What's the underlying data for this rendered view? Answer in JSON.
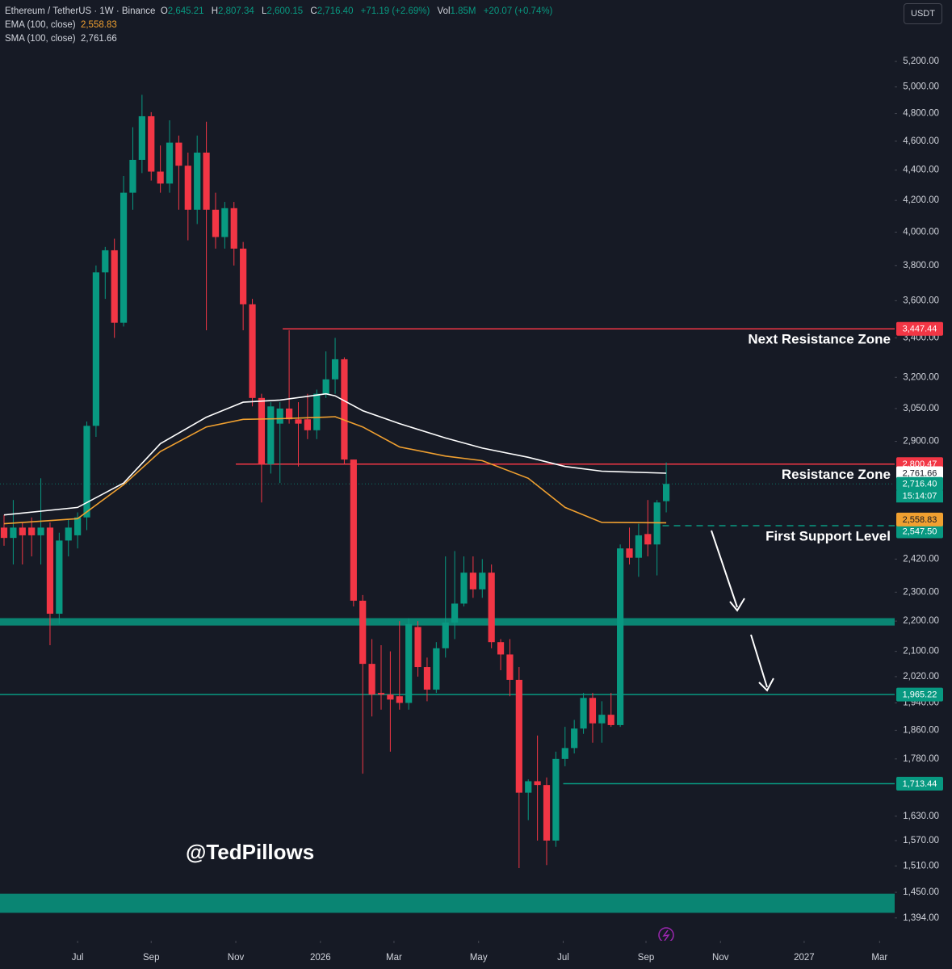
{
  "header": {
    "symbol": "Ethereum / TetherUS · 1W · Binance",
    "open_key": "O",
    "open": "2,645.21",
    "high_key": "H",
    "high": "2,807.34",
    "low_key": "L",
    "low": "2,600.15",
    "close_key": "C",
    "close": "2,716.40",
    "change": "+71.19 (+2.69%)",
    "volume_key": "Vol",
    "volume": "1.85M",
    "volume_change": "+20.07 (+0.74%)"
  },
  "currency": "USDT",
  "watermark": "@TedPillows",
  "chart_data": {
    "type": "candlestick",
    "log_scale": true,
    "up_color": "#089981",
    "down_color": "#f23645",
    "ylim": [
      1346,
      5715
    ],
    "yticks": [
      {
        "value": 5200,
        "label": "5,200.00"
      },
      {
        "value": 5000,
        "label": "5,000.00"
      },
      {
        "value": 4800,
        "label": "4,800.00"
      },
      {
        "value": 4600,
        "label": "4,600.00"
      },
      {
        "value": 4400,
        "label": "4,400.00"
      },
      {
        "value": 4200,
        "label": "4,200.00"
      },
      {
        "value": 4000,
        "label": "4,000.00"
      },
      {
        "value": 3800,
        "label": "3,800.00"
      },
      {
        "value": 3600,
        "label": "3,600.00"
      },
      {
        "value": 3400,
        "label": "3,400.00"
      },
      {
        "value": 3200,
        "label": "3,200.00"
      },
      {
        "value": 3050,
        "label": "3,050.00"
      },
      {
        "value": 2900,
        "label": "2,900.00"
      },
      {
        "value": 2420,
        "label": "2,420.00"
      },
      {
        "value": 2300,
        "label": "2,300.00"
      },
      {
        "value": 2200,
        "label": "2,200.00"
      },
      {
        "value": 2100,
        "label": "2,100.00"
      },
      {
        "value": 2020,
        "label": "2,020.00"
      },
      {
        "value": 1940,
        "label": "1,940.00"
      },
      {
        "value": 1860,
        "label": "1,860.00"
      },
      {
        "value": 1780,
        "label": "1,780.00"
      },
      {
        "value": 1630,
        "label": "1,630.00"
      },
      {
        "value": 1570,
        "label": "1,570.00"
      },
      {
        "value": 1510,
        "label": "1,510.00"
      },
      {
        "value": 1450,
        "label": "1,450.00"
      },
      {
        "value": 1394,
        "label": "1,394.00"
      }
    ],
    "xlim": [
      -0.44,
      96.84
    ],
    "xticks": [
      {
        "value": 8.0,
        "label": "Jul"
      },
      {
        "value": 16.0,
        "label": "Sep"
      },
      {
        "value": 25.2,
        "label": "Nov"
      },
      {
        "value": 34.4,
        "label": "2026"
      },
      {
        "value": 42.4,
        "label": "Mar"
      },
      {
        "value": 51.6,
        "label": "May"
      },
      {
        "value": 60.8,
        "label": "Jul"
      },
      {
        "value": 69.8,
        "label": "Sep"
      },
      {
        "value": 77.9,
        "label": "Nov"
      },
      {
        "value": 87.0,
        "label": "2027"
      },
      {
        "value": 95.2,
        "label": "Mar"
      }
    ],
    "open": [
      2540,
      2500,
      2540,
      2540,
      2510,
      2540,
      2225,
      2490,
      2510,
      2580,
      2970,
      3760,
      3890,
      3480,
      4250,
      4470,
      4780,
      4390,
      4310,
      4590,
      4430,
      4140,
      4520,
      4140,
      3970,
      4150,
      3900,
      3580,
      3100,
      2800,
      2980,
      3050,
      3000,
      3000,
      2950,
      3120,
      3190,
      3290,
      2820,
      2270,
      2060,
      1970,
      1965,
      1960,
      1940,
      2180,
      2050,
      1980,
      2110,
      2195,
      2260,
      2370,
      2310,
      2370,
      2130,
      2090,
      2010,
      1690,
      1720,
      1710,
      1570,
      1780,
      1810,
      1865,
      1955,
      1880,
      1905,
      1875,
      2460,
      2425,
      2515,
      2475,
      2645.21
    ],
    "high": [
      2590,
      2650,
      2560,
      2580,
      2740,
      2560,
      2520,
      2570,
      2600,
      2990,
      3800,
      3910,
      3960,
      4360,
      4700,
      4940,
      4810,
      4570,
      4750,
      4640,
      4520,
      4640,
      4740,
      4250,
      4190,
      4190,
      3940,
      3610,
      3120,
      3080,
      3080,
      3440,
      3080,
      3120,
      3140,
      3330,
      3400,
      3300,
      2820,
      2290,
      2140,
      2120,
      2100,
      2200,
      2210,
      2200,
      2080,
      2130,
      2430,
      2450,
      2430,
      2430,
      2420,
      2400,
      2140,
      2140,
      2050,
      1725,
      1845,
      1730,
      1800,
      1870,
      1890,
      1970,
      1970,
      1945,
      1970,
      2475,
      2540,
      2555,
      2650,
      2650,
      2807.34
    ],
    "low": [
      2470,
      2400,
      2400,
      2430,
      2400,
      2120,
      2190,
      2430,
      2460,
      2530,
      2920,
      3610,
      3400,
      3460,
      4140,
      4380,
      4330,
      4250,
      4250,
      4140,
      3950,
      4050,
      3440,
      3900,
      3900,
      3800,
      3440,
      3060,
      2640,
      2760,
      2720,
      2980,
      2790,
      2910,
      2910,
      3100,
      3120,
      2800,
      2250,
      1740,
      1900,
      1920,
      1800,
      1920,
      1920,
      2020,
      1945,
      1970,
      2080,
      2140,
      2250,
      2280,
      2280,
      2110,
      2040,
      1960,
      1505,
      1620,
      1570,
      1512,
      1555,
      1760,
      1795,
      1850,
      1825,
      1825,
      1870,
      1870,
      2400,
      2355,
      2430,
      2360,
      2600.15
    ],
    "close": [
      2500,
      2540,
      2510,
      2510,
      2540,
      2225,
      2490,
      2540,
      2580,
      2970,
      3760,
      3890,
      3480,
      4250,
      4470,
      4780,
      4390,
      4310,
      4590,
      4430,
      4140,
      4520,
      4140,
      3970,
      4150,
      3900,
      3580,
      3100,
      2800,
      3060,
      3050,
      3000,
      2980,
      2950,
      3120,
      3190,
      3290,
      2820,
      2270,
      2060,
      1965,
      1965,
      1950,
      1940,
      2190,
      2050,
      1980,
      2110,
      2195,
      2260,
      2370,
      2310,
      2370,
      2130,
      2090,
      2010,
      1690,
      1720,
      1710,
      1570,
      1780,
      1810,
      1865,
      1955,
      1880,
      1905,
      1875,
      2460,
      2425,
      2510,
      2475,
      2640,
      2716.4
    ],
    "series": [
      {
        "name": "EMA (100, close)",
        "color": "#f0a030",
        "last_label": "2,558.83",
        "x": [
          0,
          8,
          13,
          17,
          22,
          26,
          30,
          35,
          36,
          39,
          43,
          48,
          52,
          57,
          61,
          65,
          72
        ],
        "values": [
          2555,
          2575,
          2713,
          2855,
          2965,
          3000,
          3003,
          3010,
          3012,
          2965,
          2875,
          2835,
          2815,
          2740,
          2620,
          2560,
          2558.83
        ]
      },
      {
        "name": "SMA (100, close)",
        "color": "#ffffff",
        "last_label": "2,761.66",
        "x": [
          0,
          8,
          13,
          17,
          22,
          26,
          30,
          35,
          36,
          39,
          43,
          48,
          52,
          57,
          61,
          65,
          72
        ],
        "values": [
          2590,
          2620,
          2720,
          2890,
          3010,
          3080,
          3090,
          3120,
          3110,
          3040,
          2980,
          2915,
          2870,
          2830,
          2790,
          2770,
          2761.66
        ]
      }
    ],
    "last_price": {
      "value": 2716.4,
      "label": "2,716.40",
      "countdown": "15:14:07"
    },
    "levels": [
      {
        "value": 3447.44,
        "label": "3,447.44",
        "color": "#f23645",
        "start": 30.3,
        "annotation": "Next Resistance Zone"
      },
      {
        "value": 2800.47,
        "label": "2,800.47",
        "color": "#f23645",
        "start": 25.2,
        "annotation": "Resistance Zone"
      },
      {
        "value": 2547.5,
        "label": "2,547.50",
        "color": "#089981",
        "start": 71.6,
        "dashed": true,
        "annotation": "First Support Level"
      },
      {
        "value": 1965.22,
        "label": "1,965.22",
        "color": "#089981"
      },
      {
        "value": 1713.44,
        "label": "1,713.44",
        "color": "#089981",
        "start": 60.8
      }
    ],
    "zones": [
      {
        "from": 2185,
        "to": 2210,
        "color": "#089981"
      },
      {
        "from": 1405,
        "to": 1447,
        "color": "#089981"
      }
    ]
  }
}
